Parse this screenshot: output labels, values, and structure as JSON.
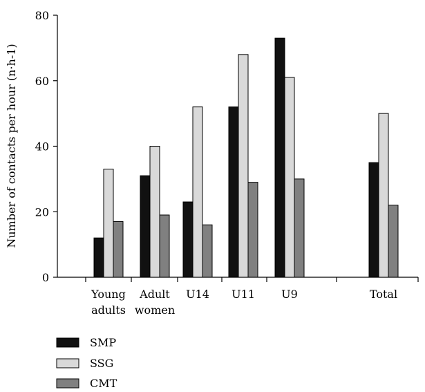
{
  "chart_data": {
    "type": "bar",
    "title": "",
    "xlabel": "",
    "ylabel": "Number of contacts per hour (n·h-1)",
    "ylim": [
      0,
      80
    ],
    "yticks": [
      0,
      20,
      40,
      60,
      80
    ],
    "grid": false,
    "legend_position": "bottom-left",
    "categories": [
      [
        "Young",
        "adults"
      ],
      [
        "Adult",
        "women"
      ],
      [
        "U14"
      ],
      [
        "U11"
      ],
      [
        "U9"
      ],
      [
        "Total"
      ]
    ],
    "series": [
      {
        "name": "SMP",
        "color": "#111111",
        "values": [
          12,
          31,
          23,
          52,
          73,
          35
        ]
      },
      {
        "name": "SSG",
        "color": "#d9d9d9",
        "values": [
          33,
          40,
          52,
          68,
          61,
          50
        ]
      },
      {
        "name": "CMT",
        "color": "#808080",
        "values": [
          17,
          19,
          16,
          29,
          30,
          22
        ]
      }
    ]
  }
}
